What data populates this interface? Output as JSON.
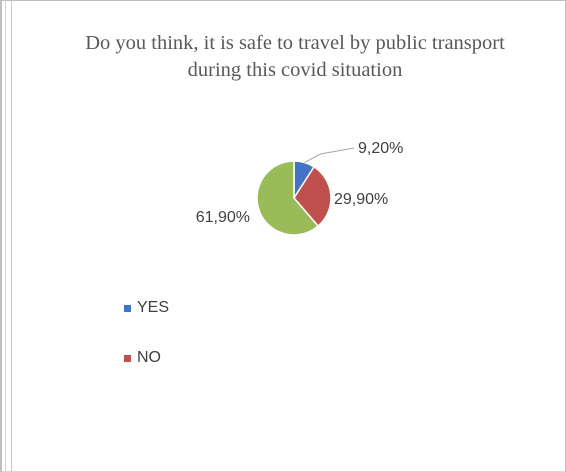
{
  "chart_data": {
    "type": "pie",
    "title": "Do you think, it is safe to travel by public transport during this covid situation",
    "slices": [
      {
        "label": "YES",
        "value": 9.2,
        "value_label": "9,20%",
        "color": "#4472c4"
      },
      {
        "label": "NO",
        "value": 29.9,
        "value_label": "29,90%",
        "color": "#c0504d"
      },
      {
        "label": "",
        "value": 61.9,
        "value_label": "61,90%",
        "color": "#9bbb59"
      }
    ],
    "legend": {
      "placement": "bottom-left",
      "entries": [
        {
          "label": "YES",
          "color": "#4472c4"
        },
        {
          "label": "NO",
          "color": "#c0504d"
        }
      ]
    }
  }
}
